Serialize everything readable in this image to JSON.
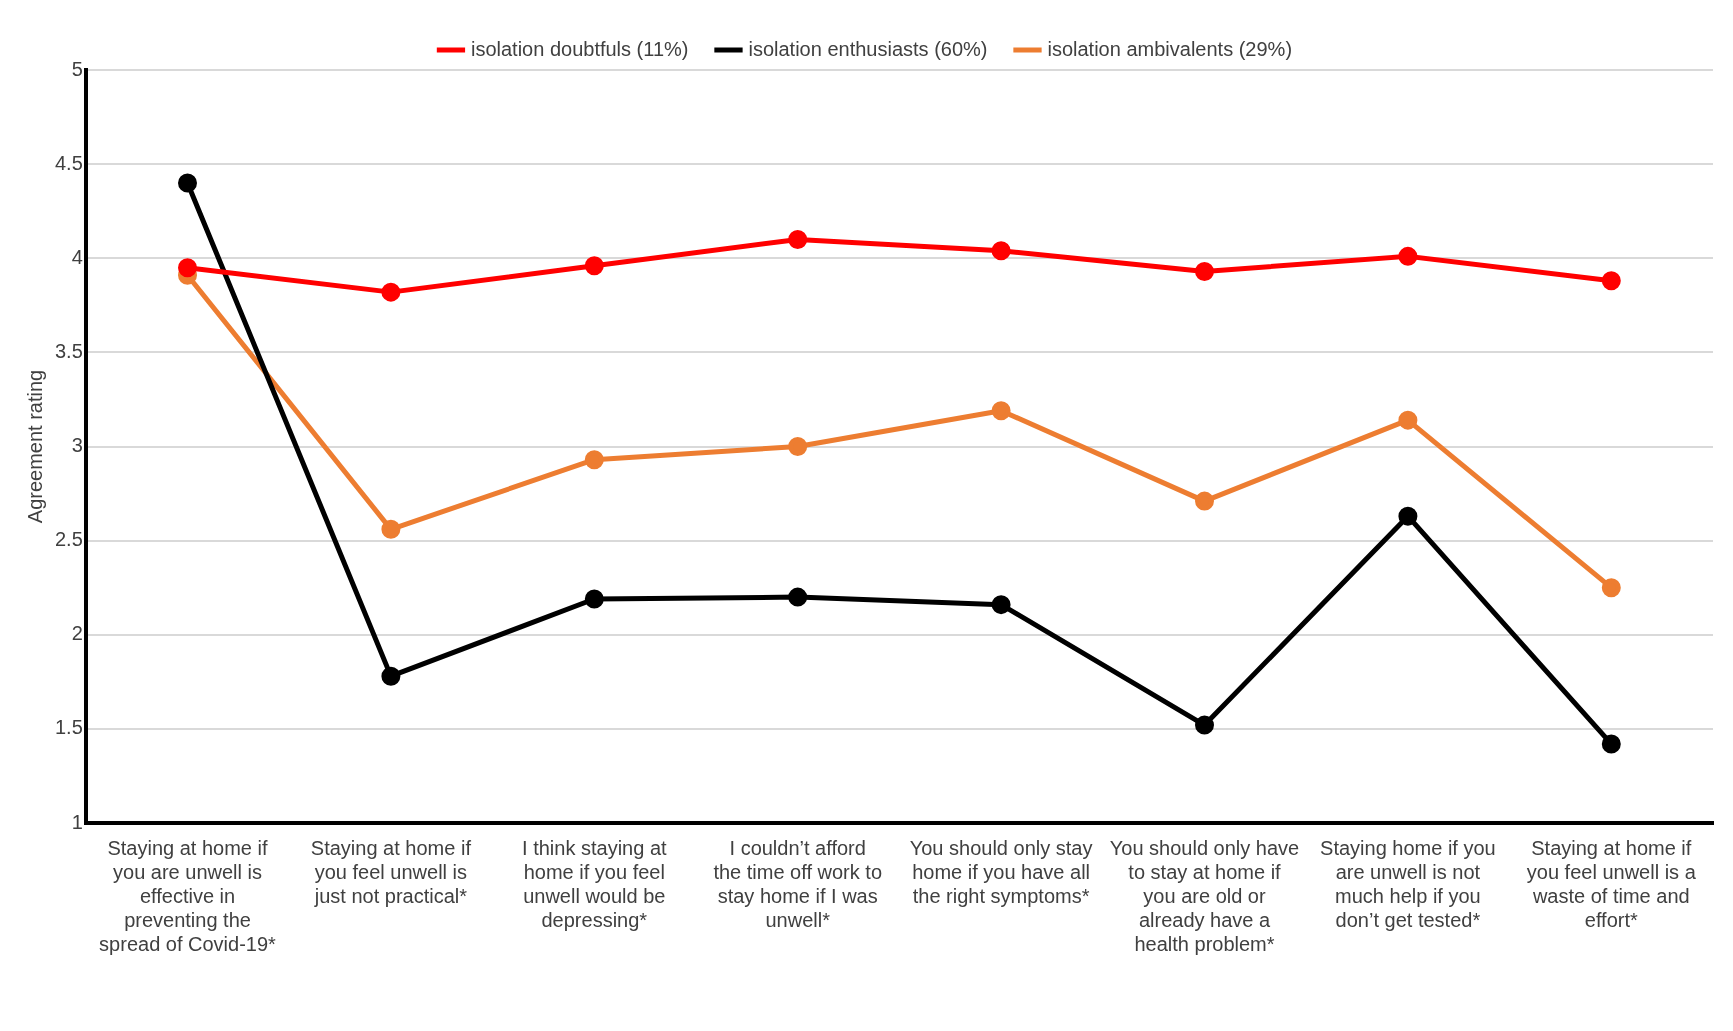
{
  "chart_data": {
    "type": "line",
    "ylabel": "Agreement rating",
    "categories": [
      "Staying at home if you are unwell is effective in preventing the spread of Covid-19*",
      "Staying at home if you feel unwell is just not practical*",
      "I think staying at home if you feel unwell would be depressing*",
      "I couldn’t afford the time off work to stay home if I was unwell*",
      "You should only stay home if you have all the right symptoms*",
      "You should only have to stay at home if you are old or already have a health problem*",
      "Staying home if you are unwell is not much help if you don’t get tested*",
      "Staying at home if you feel unwell is a waste of time and effort*"
    ],
    "series": [
      {
        "name": "isolation doubtfuls (11%)",
        "color": "#ff0000",
        "values": [
          3.95,
          3.82,
          3.96,
          4.1,
          4.04,
          3.93,
          4.01,
          3.88
        ]
      },
      {
        "name": "isolation enthusiasts (60%)",
        "color": "#000000",
        "values": [
          4.4,
          1.78,
          2.19,
          2.2,
          2.16,
          1.52,
          2.63,
          1.42
        ]
      },
      {
        "name": "isolation ambivalents (29%)",
        "color": "#ed7d31",
        "values": [
          3.91,
          2.56,
          2.93,
          3.0,
          3.19,
          2.71,
          3.14,
          2.25
        ]
      }
    ],
    "ylim": [
      1,
      5
    ],
    "yticks": [
      1,
      1.5,
      2,
      2.5,
      3,
      3.5,
      4,
      4.5,
      5
    ],
    "grid": "y",
    "legend": "top",
    "marker": "circle",
    "line_style": "solid"
  }
}
